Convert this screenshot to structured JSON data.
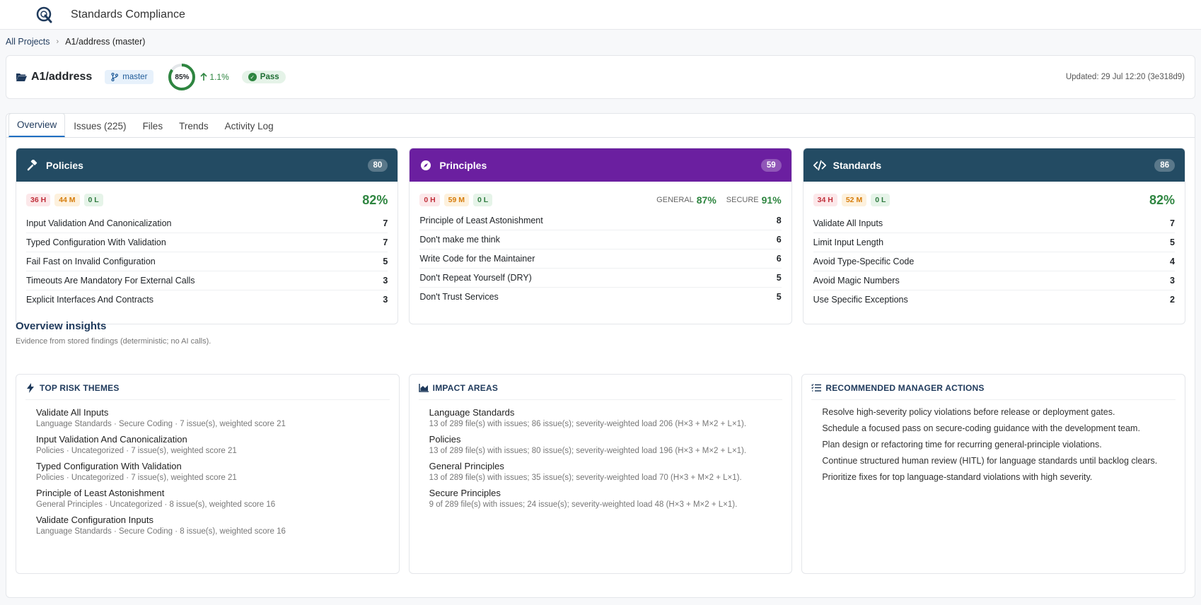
{
  "app": {
    "title": "Standards Compliance"
  },
  "breadcrumb": {
    "root": "All Projects",
    "sep": "›",
    "current": "A1/address (master)"
  },
  "project": {
    "name": "A1/address",
    "branch": "master",
    "score": "85%",
    "delta": "1.1%",
    "status": "Pass",
    "updated": "Updated: 29 Jul 12:20 (3e318d9)"
  },
  "tabs": [
    "Overview",
    "Issues (225)",
    "Files",
    "Trends",
    "Activity Log"
  ],
  "cards": {
    "policies": {
      "title": "Policies",
      "count": "80",
      "high": "36 H",
      "med": "44 M",
      "low": "0 L",
      "pct": "82%",
      "items": [
        {
          "label": "Input Validation And Canonicalization",
          "n": "7"
        },
        {
          "label": "Typed Configuration With Validation",
          "n": "7"
        },
        {
          "label": "Fail Fast on Invalid Configuration",
          "n": "5"
        },
        {
          "label": "Timeouts Are Mandatory For External Calls",
          "n": "3"
        },
        {
          "label": "Explicit Interfaces And Contracts",
          "n": "3"
        }
      ]
    },
    "principles": {
      "title": "Principles",
      "count": "59",
      "high": "0 H",
      "med": "59 M",
      "low": "0 L",
      "general_label": "GENERAL",
      "general_pct": "87%",
      "secure_label": "SECURE",
      "secure_pct": "91%",
      "items": [
        {
          "label": "Principle of Least Astonishment",
          "n": "8"
        },
        {
          "label": "Don't make me think",
          "n": "6"
        },
        {
          "label": "Write Code for the Maintainer",
          "n": "6"
        },
        {
          "label": "Don't Repeat Yourself (DRY)",
          "n": "5"
        },
        {
          "label": "Don't Trust Services",
          "n": "5"
        }
      ]
    },
    "standards": {
      "title": "Standards",
      "count": "86",
      "high": "34 H",
      "med": "52 M",
      "low": "0 L",
      "pct": "82%",
      "items": [
        {
          "label": "Validate All Inputs",
          "n": "7"
        },
        {
          "label": "Limit Input Length",
          "n": "5"
        },
        {
          "label": "Avoid Type-Specific Code",
          "n": "4"
        },
        {
          "label": "Avoid Magic Numbers",
          "n": "3"
        },
        {
          "label": "Use Specific Exceptions",
          "n": "2"
        }
      ]
    }
  },
  "insights": {
    "title": "Overview insights",
    "subtitle": "Evidence from stored findings (deterministic; no AI calls).",
    "risk": {
      "title": "TOP RISK THEMES",
      "items": [
        {
          "t": "Validate All Inputs",
          "s": "Language Standards · Secure Coding · 7 issue(s), weighted score 21"
        },
        {
          "t": "Input Validation And Canonicalization",
          "s": "Policies · Uncategorized · 7 issue(s), weighted score 21"
        },
        {
          "t": "Typed Configuration With Validation",
          "s": "Policies · Uncategorized · 7 issue(s), weighted score 21"
        },
        {
          "t": "Principle of Least Astonishment",
          "s": "General Principles · Uncategorized · 8 issue(s), weighted score 16"
        },
        {
          "t": "Validate Configuration Inputs",
          "s": "Language Standards · Secure Coding · 8 issue(s), weighted score 16"
        }
      ]
    },
    "impact": {
      "title": "IMPACT AREAS",
      "items": [
        {
          "t": "Language Standards",
          "s": "13 of 289 file(s) with issues; 86 issue(s); severity-weighted load 206 (H×3 + M×2 + L×1)."
        },
        {
          "t": "Policies",
          "s": "13 of 289 file(s) with issues; 80 issue(s); severity-weighted load 196 (H×3 + M×2 + L×1)."
        },
        {
          "t": "General Principles",
          "s": "13 of 289 file(s) with issues; 35 issue(s); severity-weighted load 70 (H×3 + M×2 + L×1)."
        },
        {
          "t": "Secure Principles",
          "s": "9 of 289 file(s) with issues; 24 issue(s); severity-weighted load 48 (H×3 + M×2 + L×1)."
        }
      ]
    },
    "actions": {
      "title": "RECOMMENDED MANAGER ACTIONS",
      "items": [
        "Resolve high-severity policy violations before release or deployment gates.",
        "Schedule a focused pass on secure-coding guidance with the development team.",
        "Plan design or refactoring time for recurring general-principle violations.",
        "Continue structured human review (HITL) for language standards until backlog clears.",
        "Prioritize fixes for top language-standard violations with high severity."
      ]
    }
  }
}
